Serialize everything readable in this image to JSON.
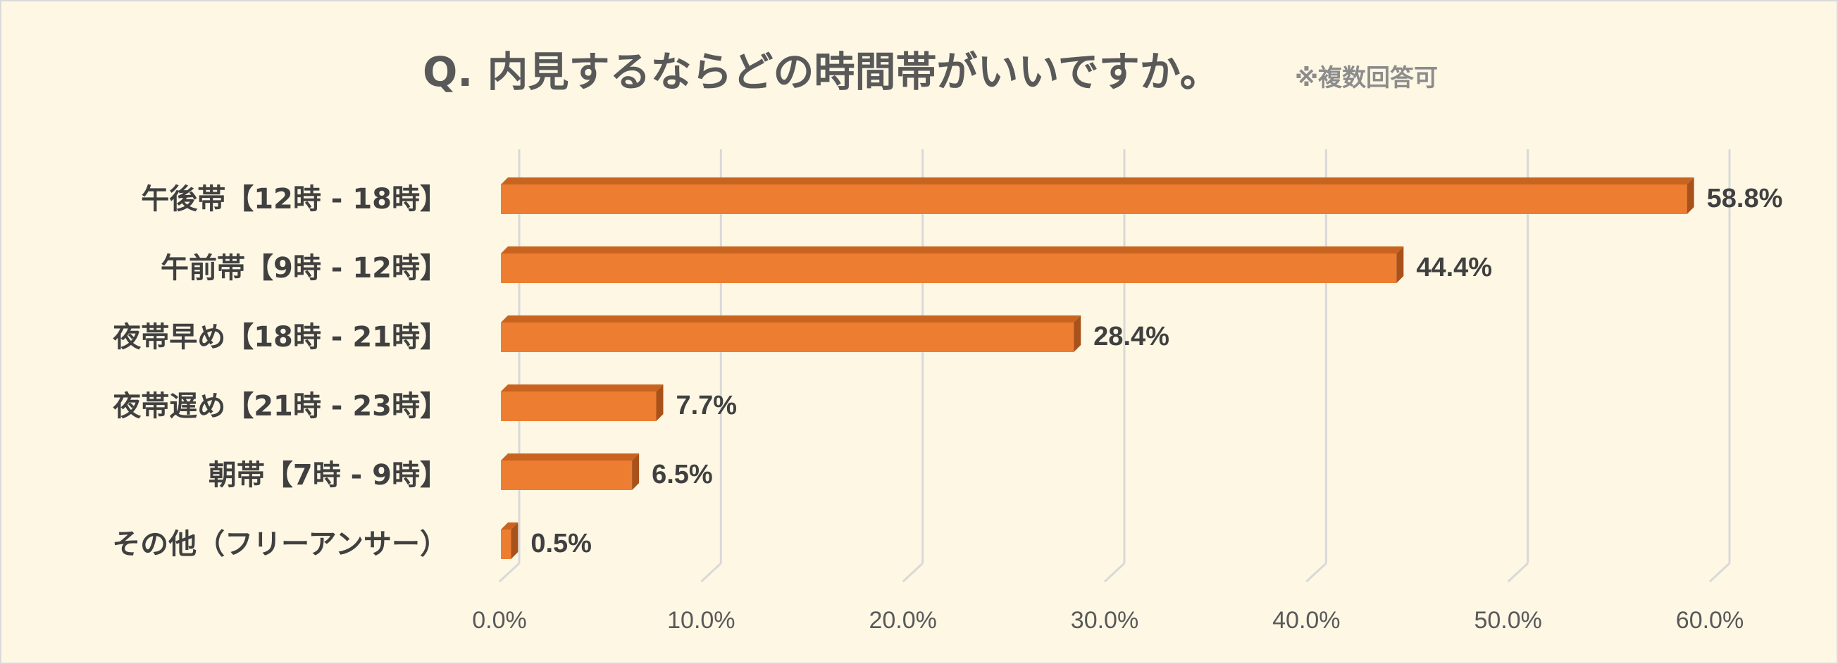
{
  "chart_data": {
    "type": "bar",
    "orientation": "horizontal",
    "title": "Q. 内見するならどの時間帯がいいですか。",
    "subtitle": "※複数回答可",
    "categories": [
      "午後帯【12時 - 18時】",
      "午前帯【9時 - 12時】",
      "夜帯早め【18時 - 21時】",
      "夜帯遅め【21時 - 23時】",
      "朝帯【7時 - 9時】",
      "その他（フリーアンサー）"
    ],
    "values": [
      58.8,
      44.4,
      28.4,
      7.7,
      6.5,
      0.5
    ],
    "value_labels": [
      "58.8%",
      "44.4%",
      "28.4%",
      "7.7%",
      "6.5%",
      "0.5%"
    ],
    "xlim": [
      0,
      60
    ],
    "ticks": [
      "0.0%",
      "10.0%",
      "20.0%",
      "30.0%",
      "40.0%",
      "50.0%",
      "60.0%"
    ],
    "xlabel": "",
    "ylabel": "",
    "grid": true,
    "legend": "none",
    "colors": {
      "bar_front": "#ed7d31",
      "bar_top": "#c8641f",
      "bar_side": "#a9511a",
      "grid": "#d9d9d9",
      "background": "#fdf7e4"
    }
  }
}
